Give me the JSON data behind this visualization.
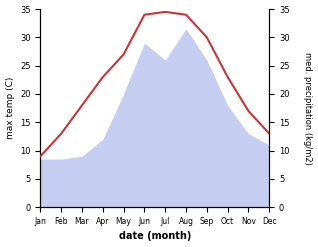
{
  "months": [
    "Jan",
    "Feb",
    "Mar",
    "Apr",
    "May",
    "Jun",
    "Jul",
    "Aug",
    "Sep",
    "Oct",
    "Nov",
    "Dec"
  ],
  "temp": [
    9.0,
    13.0,
    18.0,
    23.0,
    27.0,
    34.0,
    34.5,
    34.0,
    30.0,
    23.0,
    17.0,
    13.0
  ],
  "precip": [
    8.5,
    8.5,
    9.0,
    12.0,
    20.0,
    29.0,
    26.0,
    31.5,
    26.0,
    18.0,
    13.0,
    11.0
  ],
  "temp_color": "#cc3333",
  "precip_fill_color": "#c5cef0",
  "background_color": "#ffffff",
  "ylim": [
    0,
    35
  ],
  "yticks": [
    0,
    5,
    10,
    15,
    20,
    25,
    30,
    35
  ],
  "temp_ylabel": "max temp (C)",
  "precip_ylabel": "med. precipitation (kg/m2)",
  "xlabel": "date (month)"
}
